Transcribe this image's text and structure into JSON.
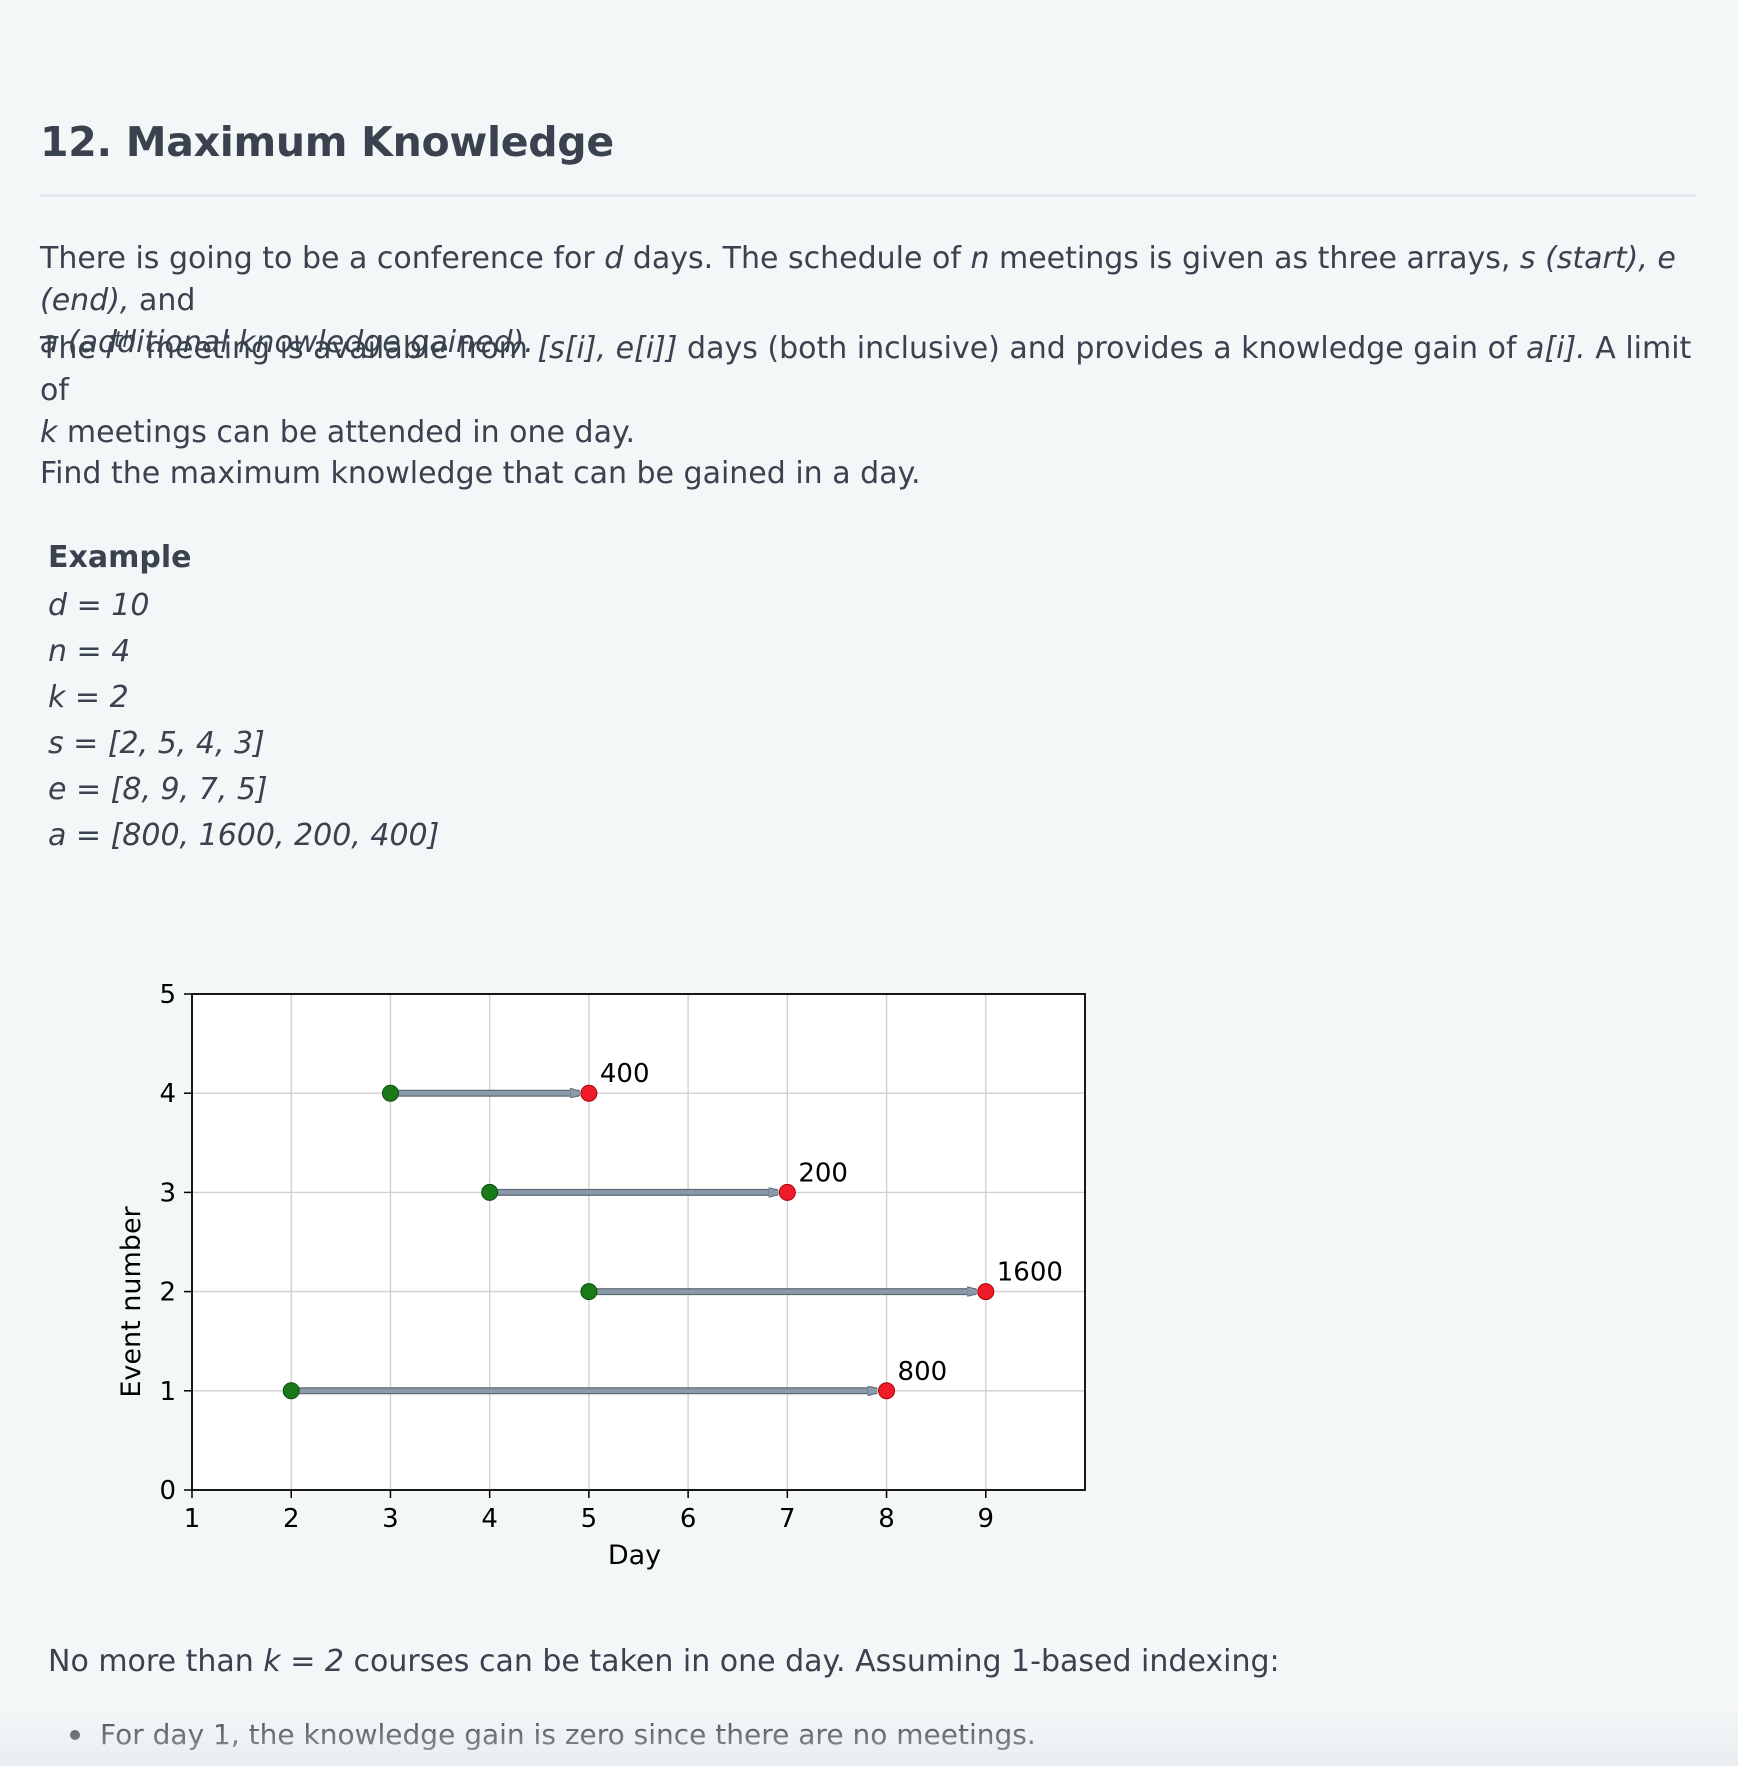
{
  "problem": {
    "title": "12. Maximum Knowledge",
    "p1": {
      "t1": "There is going to be a conference for ",
      "d": "d",
      "t2": " days. The schedule of ",
      "n": "n",
      "t3": " meetings is given as three arrays, ",
      "arrays": "s (start), e (end),",
      "t4": " and",
      "a": "a (additional knowledge gained)."
    },
    "p2": {
      "t1": "The ",
      "i": "i",
      "th": "th",
      "t2": " meeting is available from ",
      "range": "[s[i], e[i]]",
      "t3": " days (both inclusive) and provides a knowledge gain of ",
      "ai": "a[i].",
      "t4": "  A limit of",
      "k": "k",
      "t5": " meetings can be attended in one day."
    },
    "p3": "Find the maximum knowledge that can be gained in a day."
  },
  "example": {
    "heading": "Example",
    "lines": [
      "d = 10",
      "n = 4",
      "k = 2",
      "s = [2, 5, 4, 3]",
      "e = [8, 9, 7, 5]",
      "a = [800, 1600, 200, 400]"
    ]
  },
  "chart_data": {
    "type": "scatter",
    "xlabel": "Day",
    "ylabel": "Event number",
    "xlim": [
      1,
      10
    ],
    "ylim": [
      0,
      5
    ],
    "xticks": [
      "1",
      "2",
      "3",
      "4",
      "5",
      "6",
      "7",
      "8",
      "9"
    ],
    "yticks": [
      "0",
      "1",
      "2",
      "3",
      "4",
      "5"
    ],
    "grid": true,
    "events": [
      {
        "event": 1,
        "start": 2,
        "end": 8,
        "gain": "800"
      },
      {
        "event": 2,
        "start": 5,
        "end": 9,
        "gain": "1600"
      },
      {
        "event": 3,
        "start": 4,
        "end": 7,
        "gain": "200"
      },
      {
        "event": 4,
        "start": 3,
        "end": 5,
        "gain": "400"
      }
    ],
    "colors": {
      "start_point": "#1a7a1a",
      "end_point": "#f01c2c",
      "arrow": "#8a9aa8",
      "grid": "#d0d0d0"
    }
  },
  "note": {
    "t1": "No more than ",
    "k": "k = 2",
    "t2": " courses can be taken in one day. Assuming 1-based indexing:"
  },
  "bullets": [
    "For day 1, the knowledge gain is zero since there are no meetings."
  ]
}
